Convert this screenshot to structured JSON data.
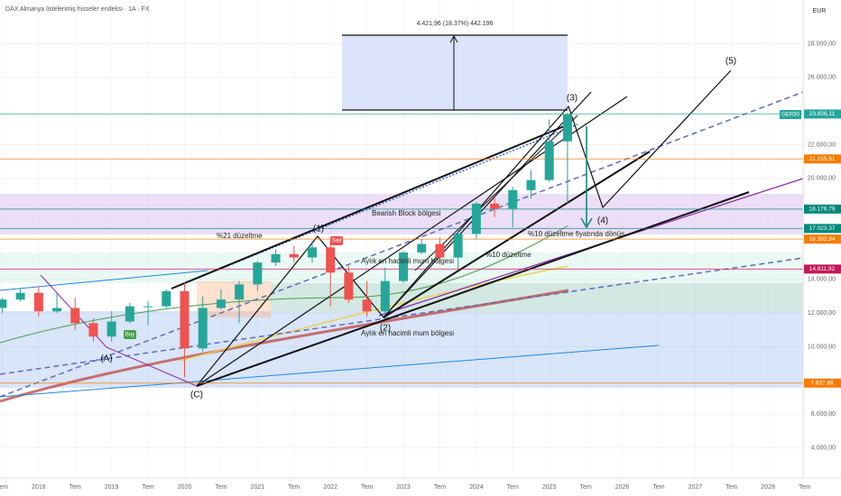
{
  "chart_data": {
    "type": "candlestick",
    "title": "DAX Almanya listelenmiş hisseler endeksi · 1A · FX",
    "currency": "EUR",
    "symbol": "GER30",
    "measure_label": "4.421,96 (18,37%) 442.196",
    "x": [
      2017.5,
      2017.75,
      2018,
      2018.25,
      2018.5,
      2018.75,
      2019,
      2019.25,
      2019.5,
      2019.75,
      2020,
      2020.25,
      2020.5,
      2020.75,
      2021,
      2021.25,
      2021.5,
      2021.75,
      2022,
      2022.25,
      2022.5,
      2022.75,
      2023,
      2023.25,
      2023.5,
      2023.75,
      2024,
      2024.25,
      2024.5,
      2024.75,
      2025,
      2025.25
    ],
    "open": [
      12300,
      12800,
      13200,
      12100,
      12300,
      11400,
      10600,
      11500,
      12400,
      12400,
      13300,
      9900,
      12300,
      12800,
      13700,
      15000,
      15500,
      15300,
      15900,
      14400,
      12800,
      12100,
      13900,
      15600,
      16100,
      15300,
      16700,
      18500,
      18200,
      19300,
      19900,
      22200
    ],
    "high": [
      12900,
      13500,
      13600,
      13200,
      12900,
      11700,
      12100,
      12600,
      12700,
      13400,
      13800,
      13000,
      13400,
      13900,
      15100,
      15800,
      16000,
      16300,
      16300,
      14800,
      13900,
      14700,
      15700,
      16400,
      16500,
      16900,
      18600,
      18900,
      19500,
      20500,
      23500,
      23900
    ],
    "low": [
      12000,
      12700,
      11800,
      12000,
      11000,
      10300,
      10300,
      11400,
      11300,
      12300,
      8200,
      9700,
      12200,
      11400,
      13300,
      14800,
      15000,
      15000,
      12400,
      12600,
      11800,
      11900,
      13800,
      15500,
      14900,
      14600,
      16400,
      17700,
      17100,
      18800,
      19800,
      18500
    ],
    "close": [
      12800,
      13200,
      12100,
      12300,
      11400,
      10600,
      11500,
      12400,
      12400,
      13300,
      9900,
      12300,
      12800,
      13700,
      15000,
      15500,
      15300,
      15900,
      14400,
      12800,
      12100,
      13900,
      15600,
      16100,
      15300,
      16700,
      18500,
      18200,
      19300,
      19900,
      22200,
      23800
    ],
    "up_color": "#26a69a",
    "down_color": "#ef5350",
    "xlim": [
      2017.47,
      2028.48
    ],
    "xticks": [
      {
        "value": 2017.5,
        "label": "Tem"
      },
      2018,
      {
        "value": 2018.5,
        "label": "Tem"
      },
      2019,
      {
        "value": 2019.5,
        "label": "Tem"
      },
      2020,
      {
        "value": 2020.5,
        "label": "Tem"
      },
      2021,
      {
        "value": 2021.5,
        "label": "Tem"
      },
      2022,
      {
        "value": 2022.5,
        "label": "Tem"
      },
      2023,
      {
        "value": 2023.5,
        "label": "Tem"
      },
      2024,
      {
        "value": 2024.5,
        "label": "Tem"
      },
      2025,
      {
        "value": 2025.5,
        "label": "Tem"
      },
      2026,
      {
        "value": 2026.5,
        "label": "Tem"
      },
      2027,
      {
        "value": 2027.5,
        "label": "Tem"
      },
      2028,
      {
        "value": 2028.5,
        "label": "Tem"
      }
    ],
    "ylim": [
      2200,
      30600
    ],
    "yticks": [
      {
        "value": 4000,
        "label": "4.000,00"
      },
      {
        "value": 6000,
        "label": "6.000,00"
      },
      {
        "value": 10000,
        "label": "10.000,00"
      },
      {
        "value": 12000,
        "label": "12.000,00"
      },
      {
        "value": 14000,
        "label": "14.000,00"
      },
      {
        "value": 20000,
        "label": "20.000,00"
      },
      {
        "value": 22000,
        "label": "22.000,00"
      },
      {
        "value": 26000,
        "label": "26.000,00"
      },
      {
        "value": 28000,
        "label": "28.000,00"
      }
    ],
    "price_labels": [
      {
        "value": 23826.11,
        "label": "23.826,11",
        "color": "#26a69a"
      },
      {
        "value": 21155.61,
        "label": "21.155,61",
        "color": "#f57c00"
      },
      {
        "value": 18176.79,
        "label": "18.176,79",
        "color": "#00897b"
      },
      {
        "value": 17023.37,
        "label": "17.023,37",
        "color": "#00897b"
      },
      {
        "value": 16392.94,
        "label": "16.392,94",
        "color": "#f57c00"
      },
      {
        "value": 14611.92,
        "label": "14.611,92",
        "color": "#c2185b"
      },
      {
        "value": 7837.88,
        "label": "7.837,88",
        "color": "#f57c00"
      }
    ],
    "annotations": [
      "(1)",
      "(2)",
      "(3)",
      "(4)",
      "(5)",
      "(A)",
      "(C)",
      "Aylık en hacimli mum bölgesi",
      "Aylık en hacimli mum bölgesi",
      "%10 düzeltme fiyatında dönüş",
      "%21 düzeltme",
      "%10 düzeltme",
      "Bearish Block bölgesi",
      "Sell",
      "Buy"
    ]
  }
}
